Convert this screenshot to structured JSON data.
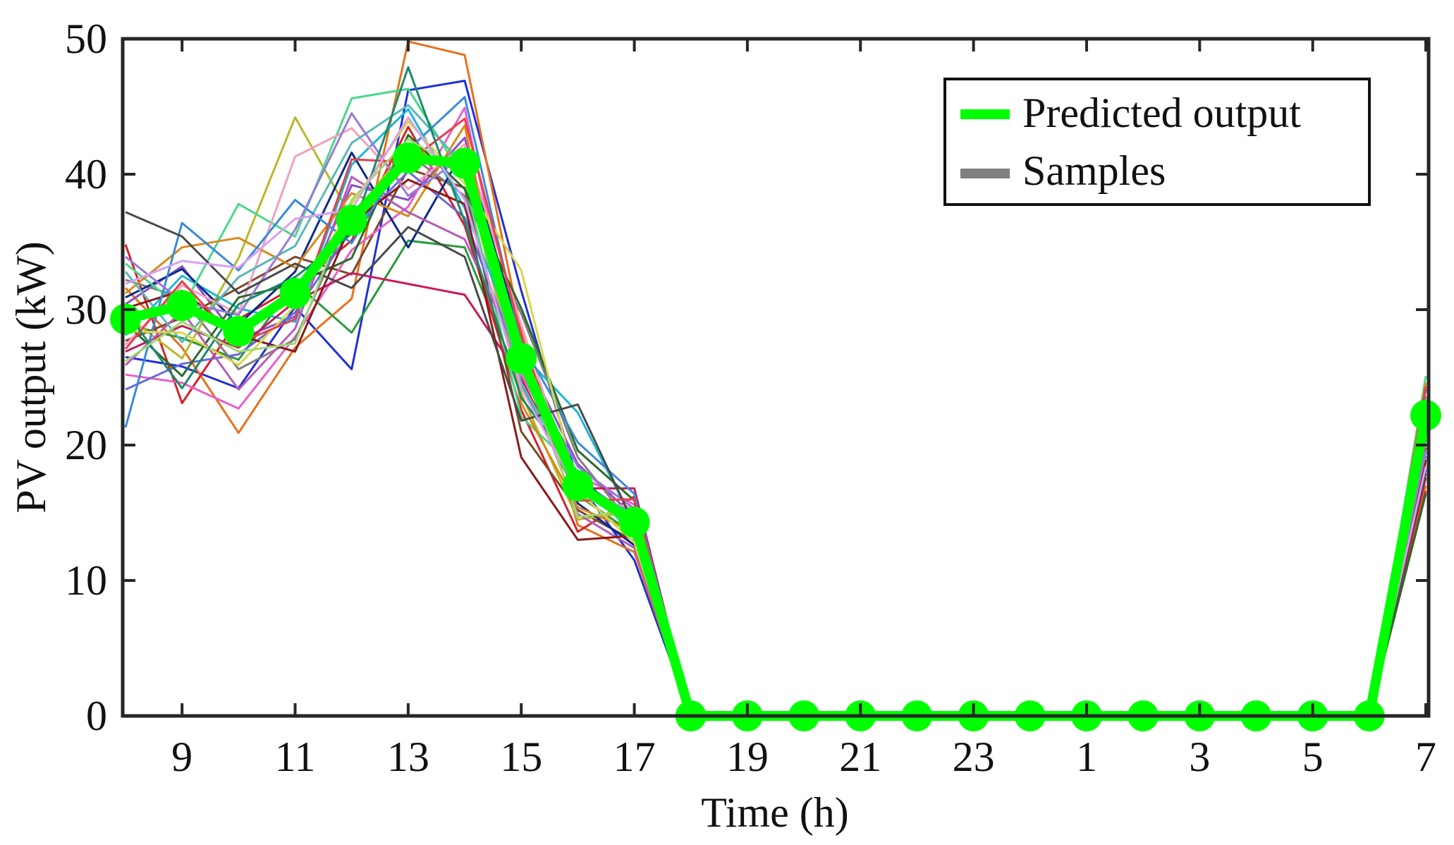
{
  "chart_data": {
    "type": "line",
    "title": "",
    "xlabel": "Time (h)",
    "ylabel": "PV output (kW)",
    "ylim": [
      0,
      50
    ],
    "yticks": [
      0,
      10,
      20,
      30,
      40,
      50
    ],
    "ytick_labels": [
      "0",
      "10",
      "20",
      "30",
      "40",
      "50"
    ],
    "x": [
      "8",
      "9",
      "10",
      "11",
      "12",
      "13",
      "14",
      "15",
      "16",
      "17",
      "18",
      "19",
      "20",
      "21",
      "22",
      "23",
      "24",
      "1",
      "2",
      "3",
      "4",
      "5",
      "6",
      "7"
    ],
    "xtick_labels": [
      "9",
      "11",
      "13",
      "15",
      "17",
      "19",
      "21",
      "23",
      "1",
      "3",
      "5",
      "7"
    ],
    "xtick_indices": [
      1,
      3,
      5,
      7,
      9,
      11,
      13,
      15,
      17,
      19,
      21,
      23
    ],
    "legend": {
      "position": "top-right",
      "entries": [
        "Predicted output",
        "Samples"
      ]
    },
    "predicted": {
      "name": "Predicted output",
      "color": "#00ff00",
      "values": [
        29.3,
        30.3,
        28.4,
        31.2,
        36.6,
        41.2,
        40.8,
        26.4,
        17.0,
        14.3,
        0,
        0,
        0,
        0,
        0,
        0,
        0,
        0,
        0,
        0,
        0,
        0,
        0,
        22.2
      ]
    },
    "samples": {
      "name": "Samples",
      "legend_color": "#808080",
      "colors": [
        "#1f2fd8",
        "#e8701a",
        "#2a9a3a",
        "#d8202a",
        "#8a4fc8",
        "#7a4a2a",
        "#e85fc8",
        "#7f7f7f",
        "#b8b82a",
        "#1ab8d8",
        "#0b2a8a",
        "#c81a5a",
        "#4ad88a",
        "#f0a0c0",
        "#6a6ad8",
        "#d88a1a",
        "#2a6a2a",
        "#b85ab8",
        "#5ab8b8",
        "#8a1a1a",
        "#3a8ad8",
        "#d8d84a",
        "#9a7ad8",
        "#4a4a4a",
        "#e8404a",
        "#1a8a6a",
        "#a0d870",
        "#d8a0f0"
      ],
      "series": [
        [
          26.5,
          25.8,
          24.2,
          30.2,
          25.6,
          46.2,
          46.9,
          31.4,
          17.3,
          11.5,
          0,
          0,
          0,
          0,
          0,
          0,
          0,
          0,
          0,
          0,
          0,
          0,
          0,
          18.2
        ],
        [
          31.6,
          27.2,
          20.9,
          27.2,
          30.8,
          49.8,
          48.8,
          28.4,
          14.1,
          12.1,
          0,
          0,
          0,
          0,
          0,
          0,
          0,
          0,
          0,
          0,
          0,
          0,
          0,
          17.0
        ],
        [
          28.9,
          27.9,
          26.3,
          32.0,
          28.3,
          35.1,
          34.6,
          24.4,
          16.3,
          13.4,
          0,
          0,
          0,
          0,
          0,
          0,
          0,
          0,
          0,
          0,
          0,
          0,
          0,
          20.4
        ],
        [
          34.8,
          23.1,
          29.3,
          31.7,
          35.1,
          43.5,
          36.2,
          22.6,
          13.6,
          16.2,
          0,
          0,
          0,
          0,
          0,
          0,
          0,
          0,
          0,
          0,
          0,
          0,
          0,
          16.6
        ],
        [
          30.4,
          33.2,
          27.8,
          29.5,
          39.2,
          38.1,
          42.7,
          27.1,
          18.6,
          14.7,
          0,
          0,
          0,
          0,
          0,
          0,
          0,
          0,
          0,
          0,
          0,
          0,
          0,
          24.1
        ],
        [
          27.7,
          29.4,
          31.6,
          33.9,
          32.6,
          40.4,
          39.0,
          21.0,
          15.2,
          12.9,
          0,
          0,
          0,
          0,
          0,
          0,
          0,
          0,
          0,
          0,
          0,
          0,
          0,
          19.8
        ],
        [
          25.2,
          24.6,
          22.7,
          28.0,
          34.4,
          37.6,
          44.9,
          25.2,
          17.8,
          15.6,
          0,
          0,
          0,
          0,
          0,
          0,
          0,
          0,
          0,
          0,
          0,
          0,
          0,
          21.3
        ],
        [
          32.2,
          30.9,
          25.6,
          27.8,
          37.1,
          41.5,
          38.4,
          29.7,
          19.1,
          13.9,
          0,
          0,
          0,
          0,
          0,
          0,
          0,
          0,
          0,
          0,
          0,
          0,
          0,
          23.6
        ],
        [
          29.6,
          26.4,
          33.8,
          44.2,
          36.8,
          42.1,
          40.2,
          23.8,
          14.5,
          15.1,
          0,
          0,
          0,
          0,
          0,
          0,
          0,
          0,
          0,
          0,
          0,
          0,
          0,
          18.7
        ],
        [
          28.1,
          32.5,
          30.1,
          29.1,
          40.7,
          44.8,
          37.5,
          26.8,
          22.4,
          14.2,
          0,
          0,
          0,
          0,
          0,
          0,
          0,
          0,
          0,
          0,
          0,
          0,
          0,
          20.9
        ],
        [
          30.9,
          33.0,
          28.9,
          32.8,
          41.6,
          34.6,
          41.9,
          27.9,
          15.7,
          12.6,
          0,
          0,
          0,
          0,
          0,
          0,
          0,
          0,
          0,
          0,
          0,
          0,
          0,
          22.8
        ],
        [
          26.9,
          28.8,
          27.2,
          30.6,
          32.7,
          31.9,
          31.1,
          24.9,
          16.8,
          16.8,
          0,
          0,
          0,
          0,
          0,
          0,
          0,
          0,
          0,
          0,
          0,
          0,
          0,
          17.6
        ],
        [
          33.4,
          30.1,
          37.8,
          35.4,
          45.6,
          46.3,
          39.6,
          22.1,
          18.1,
          13.1,
          0,
          0,
          0,
          0,
          0,
          0,
          0,
          0,
          0,
          0,
          0,
          0,
          0,
          25.1
        ],
        [
          27.4,
          31.8,
          29.7,
          41.3,
          43.4,
          38.9,
          42.2,
          28.9,
          16.0,
          15.4,
          0,
          0,
          0,
          0,
          0,
          0,
          0,
          0,
          0,
          0,
          0,
          0,
          0,
          21.7
        ],
        [
          24.1,
          26.0,
          26.7,
          29.8,
          35.9,
          40.2,
          36.8,
          25.6,
          17.5,
          14.6,
          0,
          0,
          0,
          0,
          0,
          0,
          0,
          0,
          0,
          0,
          0,
          0,
          0,
          19.2
        ],
        [
          31.2,
          34.6,
          35.3,
          33.1,
          38.6,
          36.9,
          43.6,
          23.1,
          15.4,
          13.6,
          0,
          0,
          0,
          0,
          0,
          0,
          0,
          0,
          0,
          0,
          0,
          0,
          0,
          24.6
        ],
        [
          29.0,
          25.1,
          30.9,
          31.9,
          33.8,
          42.9,
          38.9,
          30.1,
          19.6,
          15.9,
          0,
          0,
          0,
          0,
          0,
          0,
          0,
          0,
          0,
          0,
          0,
          0,
          0,
          16.4
        ],
        [
          25.9,
          29.9,
          24.1,
          28.6,
          39.8,
          37.2,
          35.2,
          26.1,
          14.9,
          12.4,
          0,
          0,
          0,
          0,
          0,
          0,
          0,
          0,
          0,
          0,
          0,
          0,
          0,
          20.1
        ],
        [
          32.8,
          27.6,
          32.4,
          34.7,
          42.3,
          45.1,
          40.6,
          24.6,
          17.1,
          14.9,
          0,
          0,
          0,
          0,
          0,
          0,
          0,
          0,
          0,
          0,
          0,
          0,
          0,
          22.3
        ],
        [
          30.1,
          31.4,
          28.1,
          26.9,
          36.4,
          39.6,
          37.8,
          19.1,
          13.0,
          13.3,
          0,
          0,
          0,
          0,
          0,
          0,
          0,
          0,
          0,
          0,
          0,
          0,
          0,
          18.9
        ],
        [
          21.3,
          36.4,
          32.9,
          38.1,
          34.9,
          41.8,
          45.7,
          27.6,
          20.2,
          16.4,
          0,
          0,
          0,
          0,
          0,
          0,
          0,
          0,
          0,
          0,
          0,
          0,
          0,
          23.2
        ],
        [
          28.4,
          28.3,
          25.9,
          30.3,
          37.8,
          43.9,
          39.3,
          32.9,
          16.6,
          12.8,
          0,
          0,
          0,
          0,
          0,
          0,
          0,
          0,
          0,
          0,
          0,
          0,
          0,
          21.1
        ],
        [
          33.9,
          30.6,
          29.6,
          35.9,
          44.5,
          38.4,
          41.4,
          25.9,
          18.4,
          15.3,
          0,
          0,
          0,
          0,
          0,
          0,
          0,
          0,
          0,
          0,
          0,
          0,
          0,
          19.5
        ],
        [
          37.2,
          35.4,
          31.2,
          33.4,
          31.6,
          36.1,
          33.9,
          21.8,
          23.0,
          14.1,
          0,
          0,
          0,
          0,
          0,
          0,
          0,
          0,
          0,
          0,
          0,
          0,
          0,
          17.9
        ],
        [
          27.1,
          32.1,
          27.5,
          29.3,
          41.1,
          40.9,
          44.1,
          28.1,
          15.9,
          16.0,
          0,
          0,
          0,
          0,
          0,
          0,
          0,
          0,
          0,
          0,
          0,
          0,
          0,
          24.3
        ],
        [
          29.9,
          24.2,
          30.4,
          32.4,
          35.6,
          47.9,
          36.5,
          23.5,
          17.9,
          13.8,
          0,
          0,
          0,
          0,
          0,
          0,
          0,
          0,
          0,
          0,
          0,
          0,
          0,
          20.6
        ],
        [
          26.2,
          29.1,
          26.9,
          27.5,
          38.1,
          42.6,
          40.1,
          26.6,
          14.7,
          15.2,
          0,
          0,
          0,
          0,
          0,
          0,
          0,
          0,
          0,
          0,
          0,
          0,
          0,
          22.6
        ],
        [
          31.9,
          33.6,
          33.1,
          36.7,
          37.4,
          44.2,
          38.1,
          24.2,
          16.5,
          14.4,
          0,
          0,
          0,
          0,
          0,
          0,
          0,
          0,
          0,
          0,
          0,
          0,
          0,
          18.4
        ]
      ]
    }
  }
}
